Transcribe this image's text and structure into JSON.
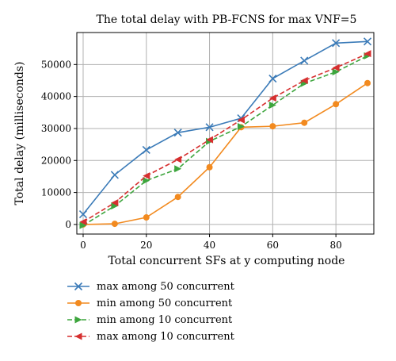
{
  "chart_data": {
    "type": "line",
    "title": "The total delay with PB-FCNS for max VNF=5",
    "xlabel": "Total concurrent SFs at y computing node",
    "ylabel": "Total delay (milliseconds)",
    "xlim": [
      -2,
      92
    ],
    "ylim": [
      -3000,
      60000
    ],
    "xticks": [
      0,
      20,
      40,
      60,
      80
    ],
    "yticks": [
      0,
      10000,
      20000,
      30000,
      40000,
      50000
    ],
    "grid": true,
    "legend_position": "below",
    "x": [
      0,
      10,
      20,
      30,
      40,
      50,
      60,
      70,
      80,
      90
    ],
    "series": [
      {
        "name": "max among 50 concurrent",
        "color": "#3b7bb8",
        "marker": "x",
        "dash": "solid",
        "values": [
          3200,
          15500,
          23300,
          28700,
          30400,
          33200,
          45600,
          51200,
          56700,
          57200
        ]
      },
      {
        "name": "min among 50 concurrent",
        "color": "#f28a1f",
        "marker": "circle",
        "dash": "solid",
        "values": [
          0,
          200,
          2200,
          8600,
          17900,
          30400,
          30700,
          31800,
          37600,
          44200
        ]
      },
      {
        "name": "min among 10 concurrent",
        "color": "#3da53d",
        "marker": "triangle-right",
        "dash": "dashed",
        "values": [
          -300,
          5800,
          13700,
          17400,
          26000,
          30600,
          37300,
          44100,
          47700,
          52700
        ]
      },
      {
        "name": "max among 10 concurrent",
        "color": "#d62f2f",
        "marker": "triangle-left",
        "dash": "dashed",
        "values": [
          800,
          6800,
          15200,
          20300,
          26500,
          32700,
          39500,
          45000,
          49000,
          53400
        ]
      }
    ]
  }
}
